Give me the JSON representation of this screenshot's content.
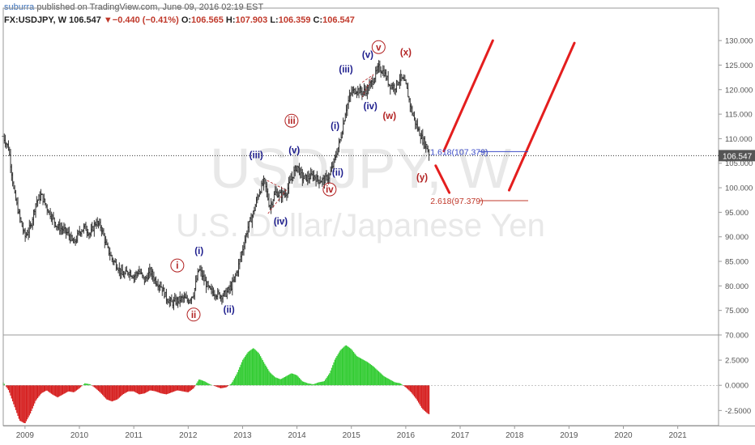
{
  "header": {
    "user": "suburra",
    "published_text": " published on TradingView.com, June 09, 2016 02:19 EST",
    "symbol": "FX:USDJPY, W",
    "last": "106.547",
    "change_arrow": "▼",
    "change": "−0.440 (−0.41%)",
    "o_label": "O:",
    "o_value": "106.565",
    "h_label": "H:",
    "h_value": "107.903",
    "l_label": "L:",
    "l_value": "106.359",
    "c_label": "C:",
    "c_value": "106.547"
  },
  "watermark": {
    "symbol": "USDJPY, W",
    "description": "U.S. Dollar/Japanese Yen"
  },
  "colors": {
    "bar": "#333333",
    "wave_blue": "#1c1c8c",
    "wave_red": "#b22222",
    "projection": "#e41e1e",
    "hist_up": "#33cc33",
    "hist_down": "#d62020",
    "fib_blue": "#3b4bc8",
    "fib_red": "#c0392b",
    "price_tag_bg": "#555555"
  },
  "chart_data": [
    {
      "type": "candlestick",
      "name": "price",
      "ylim": [
        70,
        132
      ],
      "xlim": [
        2008.6,
        2021.75
      ],
      "yticks": [
        "70.000",
        "75.000",
        "80.000",
        "85.000",
        "90.000",
        "95.000",
        "100.000",
        "105.000",
        "110.000",
        "115.000",
        "120.000",
        "125.000",
        "130.000"
      ],
      "xticks": [
        {
          "x": 2009,
          "label": "2009"
        },
        {
          "x": 2010,
          "label": "2010"
        },
        {
          "x": 2011,
          "label": "2011"
        },
        {
          "x": 2012,
          "label": "2012"
        },
        {
          "x": 2013,
          "label": "2013"
        },
        {
          "x": 2014,
          "label": "2014"
        },
        {
          "x": 2015,
          "label": "2015"
        },
        {
          "x": 2016,
          "label": "2016"
        },
        {
          "x": 2017,
          "label": "2017"
        },
        {
          "x": 2018,
          "label": "2018"
        },
        {
          "x": 2019,
          "label": "2019"
        },
        {
          "x": 2020,
          "label": "2020"
        },
        {
          "x": 2021,
          "label": "2021"
        }
      ],
      "price_path": [
        [
          2008.6,
          110.5
        ],
        [
          2008.7,
          108
        ],
        [
          2008.8,
          99
        ],
        [
          2008.9,
          94
        ],
        [
          2009.0,
          90
        ],
        [
          2009.1,
          92
        ],
        [
          2009.2,
          97
        ],
        [
          2009.3,
          98.5
        ],
        [
          2009.4,
          96
        ],
        [
          2009.5,
          94
        ],
        [
          2009.6,
          92
        ],
        [
          2009.7,
          91.5
        ],
        [
          2009.8,
          90.5
        ],
        [
          2009.9,
          88.5
        ],
        [
          2010.0,
          91
        ],
        [
          2010.1,
          92
        ],
        [
          2010.2,
          90.5
        ],
        [
          2010.3,
          93
        ],
        [
          2010.4,
          92
        ],
        [
          2010.5,
          88
        ],
        [
          2010.6,
          85.5
        ],
        [
          2010.7,
          84
        ],
        [
          2010.8,
          82
        ],
        [
          2010.9,
          83
        ],
        [
          2011.0,
          82
        ],
        [
          2011.1,
          83
        ],
        [
          2011.2,
          81
        ],
        [
          2011.3,
          83
        ],
        [
          2011.4,
          81
        ],
        [
          2011.5,
          80
        ],
        [
          2011.6,
          77.5
        ],
        [
          2011.7,
          76.5
        ],
        [
          2011.8,
          77
        ],
        [
          2011.9,
          77.5
        ],
        [
          2012.0,
          77
        ],
        [
          2012.1,
          78.5
        ],
        [
          2012.2,
          83.5
        ],
        [
          2012.3,
          81
        ],
        [
          2012.4,
          79
        ],
        [
          2012.5,
          78.5
        ],
        [
          2012.6,
          78
        ],
        [
          2012.7,
          78.5
        ],
        [
          2012.8,
          80
        ],
        [
          2012.9,
          83
        ],
        [
          2013.0,
          87.5
        ],
        [
          2013.1,
          92
        ],
        [
          2013.2,
          95
        ],
        [
          2013.3,
          99
        ],
        [
          2013.4,
          101.5
        ],
        [
          2013.5,
          96
        ],
        [
          2013.6,
          99
        ],
        [
          2013.7,
          98.5
        ],
        [
          2013.8,
          99
        ],
        [
          2013.9,
          102
        ],
        [
          2014.0,
          104.5
        ],
        [
          2014.1,
          102
        ],
        [
          2014.2,
          102
        ],
        [
          2014.3,
          102.5
        ],
        [
          2014.4,
          101.5
        ],
        [
          2014.5,
          101.5
        ],
        [
          2014.6,
          102.5
        ],
        [
          2014.7,
          106
        ],
        [
          2014.8,
          110
        ],
        [
          2014.9,
          116
        ],
        [
          2015.0,
          119.5
        ],
        [
          2015.1,
          120
        ],
        [
          2015.2,
          119.5
        ],
        [
          2015.3,
          120
        ],
        [
          2015.4,
          122
        ],
        [
          2015.5,
          124.5
        ],
        [
          2015.6,
          123.5
        ],
        [
          2015.7,
          121
        ],
        [
          2015.8,
          120.5
        ],
        [
          2015.9,
          122.5
        ],
        [
          2016.0,
          121
        ],
        [
          2016.1,
          116
        ],
        [
          2016.2,
          112.5
        ],
        [
          2016.3,
          110
        ],
        [
          2016.4,
          108
        ],
        [
          2016.44,
          106.5
        ]
      ],
      "last_price": 106.547,
      "last_price_label": "106.547",
      "fib_levels": [
        {
          "label": "1.618(107.379)",
          "value": 107.379,
          "color_key": "fib_blue",
          "x_start": 2016.75,
          "x_end": 2018.25
        },
        {
          "label": "2.618(97.379)",
          "value": 97.379,
          "color_key": "fib_red",
          "x_start": 2016.75,
          "x_end": 2018.25
        }
      ],
      "wave_labels": [
        {
          "text": "i",
          "x": 2011.8,
          "y": 83.5,
          "color_key": "wave_red",
          "circled": true
        },
        {
          "text": "ii",
          "x": 2012.1,
          "y": 73.5,
          "color_key": "wave_red",
          "circled": true
        },
        {
          "text": "(i)",
          "x": 2012.2,
          "y": 86.5,
          "color_key": "wave_blue",
          "circled": false
        },
        {
          "text": "(ii)",
          "x": 2012.75,
          "y": 74.5,
          "color_key": "wave_blue",
          "circled": false
        },
        {
          "text": "(iii)",
          "x": 2013.25,
          "y": 106,
          "color_key": "wave_blue",
          "circled": false
        },
        {
          "text": "(iv)",
          "x": 2013.7,
          "y": 92.5,
          "color_key": "wave_blue",
          "circled": false
        },
        {
          "text": "(v)",
          "x": 2013.95,
          "y": 107,
          "color_key": "wave_blue",
          "circled": false
        },
        {
          "text": "iii",
          "x": 2013.9,
          "y": 113,
          "color_key": "wave_red",
          "circled": true
        },
        {
          "text": "iv",
          "x": 2014.6,
          "y": 99,
          "color_key": "wave_red",
          "circled": true
        },
        {
          "text": "(i)",
          "x": 2014.7,
          "y": 112,
          "color_key": "wave_blue",
          "circled": false
        },
        {
          "text": "(ii)",
          "x": 2014.75,
          "y": 102.5,
          "color_key": "wave_blue",
          "circled": false
        },
        {
          "text": "(iii)",
          "x": 2014.9,
          "y": 123.5,
          "color_key": "wave_blue",
          "circled": false
        },
        {
          "text": "(iv)",
          "x": 2015.35,
          "y": 116,
          "color_key": "wave_blue",
          "circled": false
        },
        {
          "text": "(v)",
          "x": 2015.3,
          "y": 126.5,
          "color_key": "wave_blue",
          "circled": false
        },
        {
          "text": "v",
          "x": 2015.5,
          "y": 128,
          "color_key": "wave_red",
          "circled": true
        },
        {
          "text": "(w)",
          "x": 2015.7,
          "y": 114,
          "color_key": "wave_red",
          "circled": false
        },
        {
          "text": "(x)",
          "x": 2016.0,
          "y": 127,
          "color_key": "wave_red",
          "circled": false
        },
        {
          "text": "(y)",
          "x": 2016.3,
          "y": 101.5,
          "color_key": "wave_red",
          "circled": false
        }
      ],
      "triangles": [
        [
          [
            2013.45,
            101.5
          ],
          [
            2013.8,
            99.5
          ],
          [
            2013.45,
            94.5
          ]
        ],
        [
          [
            2015.2,
            121.5
          ],
          [
            2015.4,
            123
          ],
          [
            2015.2,
            118.5
          ]
        ]
      ],
      "projection_lines": [
        [
          [
            2016.7,
            107.5
          ],
          [
            2017.6,
            130
          ]
        ],
        [
          [
            2016.55,
            104.5
          ],
          [
            2016.8,
            99
          ]
        ],
        [
          [
            2017.9,
            99.5
          ],
          [
            2019.1,
            129.5
          ]
        ]
      ]
    },
    {
      "type": "histogram",
      "name": "oscillator",
      "ylim": [
        -4,
        5
      ],
      "yticks": [
        "2.5000",
        "0.0000",
        "-2.5000"
      ],
      "yticks_values": [
        2.5,
        0,
        -2.5
      ],
      "profile": [
        [
          2008.6,
          0.3
        ],
        [
          2008.7,
          -0.5
        ],
        [
          2008.8,
          -2
        ],
        [
          2008.9,
          -3.5
        ],
        [
          2009.0,
          -3.8
        ],
        [
          2009.1,
          -2.8
        ],
        [
          2009.2,
          -1.5
        ],
        [
          2009.3,
          -0.8
        ],
        [
          2009.4,
          -0.5
        ],
        [
          2009.5,
          -0.9
        ],
        [
          2009.6,
          -1.2
        ],
        [
          2009.7,
          -0.9
        ],
        [
          2009.8,
          -0.6
        ],
        [
          2009.9,
          -0.7
        ],
        [
          2010.0,
          -0.3
        ],
        [
          2010.1,
          0.2
        ],
        [
          2010.2,
          0.1
        ],
        [
          2010.3,
          -0.3
        ],
        [
          2010.4,
          -0.8
        ],
        [
          2010.5,
          -1.4
        ],
        [
          2010.6,
          -1.6
        ],
        [
          2010.7,
          -1.4
        ],
        [
          2010.8,
          -0.9
        ],
        [
          2010.9,
          -0.6
        ],
        [
          2011.0,
          -0.6
        ],
        [
          2011.1,
          -0.9
        ],
        [
          2011.2,
          -0.8
        ],
        [
          2011.3,
          -0.5
        ],
        [
          2011.4,
          -0.6
        ],
        [
          2011.5,
          -0.8
        ],
        [
          2011.6,
          -0.9
        ],
        [
          2011.7,
          -0.7
        ],
        [
          2011.8,
          -0.5
        ],
        [
          2011.9,
          -0.6
        ],
        [
          2012.0,
          -0.7
        ],
        [
          2012.1,
          -0.3
        ],
        [
          2012.2,
          0.6
        ],
        [
          2012.3,
          0.4
        ],
        [
          2012.4,
          0.1
        ],
        [
          2012.5,
          -0.1
        ],
        [
          2012.6,
          -0.3
        ],
        [
          2012.7,
          -0.2
        ],
        [
          2012.8,
          0.2
        ],
        [
          2012.9,
          1.2
        ],
        [
          2013.0,
          2.5
        ],
        [
          2013.1,
          3.3
        ],
        [
          2013.2,
          3.7
        ],
        [
          2013.3,
          3.2
        ],
        [
          2013.4,
          2.2
        ],
        [
          2013.5,
          1.3
        ],
        [
          2013.6,
          0.8
        ],
        [
          2013.7,
          0.6
        ],
        [
          2013.8,
          0.9
        ],
        [
          2013.9,
          1.2
        ],
        [
          2014.0,
          1
        ],
        [
          2014.1,
          0.4
        ],
        [
          2014.2,
          0.2
        ],
        [
          2014.3,
          0.1
        ],
        [
          2014.4,
          0.3
        ],
        [
          2014.5,
          0.4
        ],
        [
          2014.6,
          1.2
        ],
        [
          2014.7,
          2.6
        ],
        [
          2014.8,
          3.5
        ],
        [
          2014.9,
          4.0
        ],
        [
          2015.0,
          3.6
        ],
        [
          2015.1,
          2.9
        ],
        [
          2015.2,
          2.6
        ],
        [
          2015.3,
          2.3
        ],
        [
          2015.4,
          1.9
        ],
        [
          2015.5,
          1.4
        ],
        [
          2015.6,
          0.9
        ],
        [
          2015.7,
          0.6
        ],
        [
          2015.8,
          0.3
        ],
        [
          2015.9,
          0.2
        ],
        [
          2016.0,
          -0.2
        ],
        [
          2016.1,
          -0.7
        ],
        [
          2016.2,
          -1.4
        ],
        [
          2016.3,
          -2.3
        ],
        [
          2016.4,
          -2.8
        ],
        [
          2016.44,
          -2.9
        ]
      ]
    }
  ]
}
